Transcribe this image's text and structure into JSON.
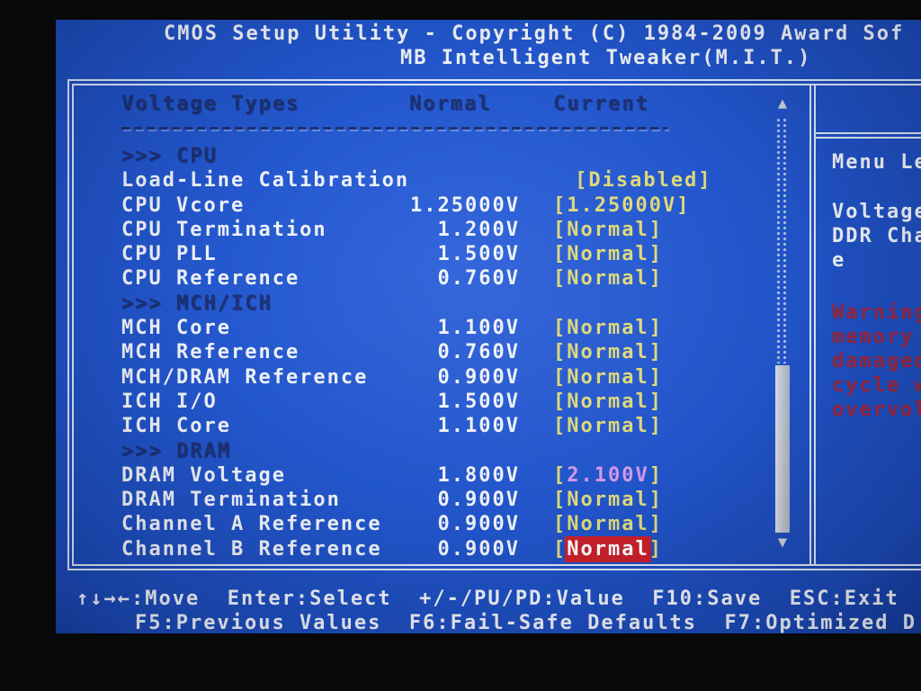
{
  "window": {
    "title_line1": "CMOS Setup Utility - Copyright (C) 1984-2009 Award Sof",
    "title_line2": "MB Intelligent Tweaker(M.I.T.)"
  },
  "table": {
    "columns": [
      "Voltage Types",
      "Normal",
      "Current"
    ],
    "rows": [
      {
        "section": ">>> CPU"
      },
      {
        "label": "Load-Line Calibration",
        "normal": "",
        "current": "Disabled",
        "style": "normal"
      },
      {
        "label": "CPU Vcore",
        "normal": "1.25000V",
        "current": "1.25000V",
        "style": "normal"
      },
      {
        "label": "CPU Termination",
        "normal": "1.200V",
        "current": "Normal",
        "style": "normal"
      },
      {
        "label": "CPU PLL",
        "normal": "1.500V",
        "current": "Normal",
        "style": "normal"
      },
      {
        "label": "CPU Reference",
        "normal": "0.760V",
        "current": "Normal",
        "style": "normal"
      },
      {
        "section": ">>> MCH/ICH"
      },
      {
        "label": "MCH Core",
        "normal": "1.100V",
        "current": "Normal",
        "style": "normal"
      },
      {
        "label": "MCH Reference",
        "normal": "0.760V",
        "current": "Normal",
        "style": "normal"
      },
      {
        "label": "MCH/DRAM Reference",
        "normal": "0.900V",
        "current": "Normal",
        "style": "normal"
      },
      {
        "label": "ICH I/O",
        "normal": "1.500V",
        "current": "Normal",
        "style": "normal"
      },
      {
        "label": "ICH Core",
        "normal": "1.100V",
        "current": "Normal",
        "style": "normal"
      },
      {
        "section": ">>> DRAM"
      },
      {
        "label": "DRAM Voltage",
        "normal": "1.800V",
        "current": "2.100V",
        "style": "modified"
      },
      {
        "label": "DRAM Termination",
        "normal": "0.900V",
        "current": "Normal",
        "style": "normal"
      },
      {
        "label": "Channel A Reference",
        "normal": "0.900V",
        "current": "Normal",
        "style": "normal"
      },
      {
        "label": "Channel B Reference",
        "normal": "0.900V",
        "current": "Normal",
        "style": "selected"
      }
    ]
  },
  "sidebar": {
    "menu_level": "Menu Le",
    "info_lines": [
      "Voltage",
      "DDR Cha",
      "e"
    ],
    "warning_lines": [
      "Warning",
      "memory",
      "damaged",
      "cycle w",
      "overvol"
    ]
  },
  "footer": {
    "line1": "↑↓→←:Move  Enter:Select  +/-/PU/PD:Value  F10:Save  ESC:Exit",
    "line2": "F5:Previous Values  F6:Fail-Safe Defaults  F7:Optimized D"
  },
  "icons": {
    "scroll_up": "▲",
    "scroll_down": "▼"
  },
  "colors": {
    "screen_blue": "#2154c8",
    "text_white": "#eef1f6",
    "value_yellow": "#ded879",
    "modified_pink": "#d19ae8",
    "selected_red_bg": "#c8202b",
    "warning_red": "#9e2840",
    "header_navy": "#1d3173",
    "border_white": "#dce4f2"
  }
}
